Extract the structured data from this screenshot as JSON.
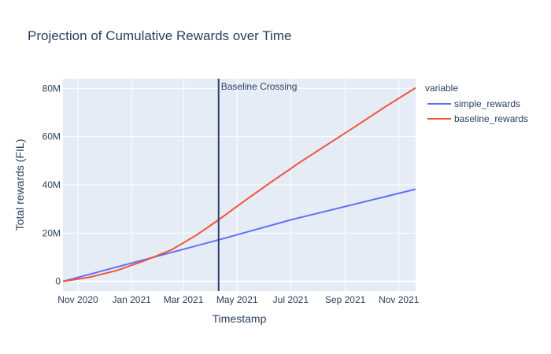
{
  "chart_data": {
    "type": "line",
    "title": "Projection of Cumulative Rewards over Time",
    "xlabel": "Timestamp",
    "ylabel": "Total rewards (FIL)",
    "x_start": "2020-10-15",
    "x_end": "2021-11-20",
    "xlim": [
      "2020-10-15",
      "2021-11-20"
    ],
    "ylim": [
      -4000000,
      84000000
    ],
    "x_ticks": [
      {
        "date": "2020-11-01",
        "label": "Nov 2020"
      },
      {
        "date": "2021-01-01",
        "label": "Jan 2021"
      },
      {
        "date": "2021-03-01",
        "label": "Mar 2021"
      },
      {
        "date": "2021-05-01",
        "label": "May 2021"
      },
      {
        "date": "2021-07-01",
        "label": "Jul 2021"
      },
      {
        "date": "2021-09-01",
        "label": "Sep 2021"
      },
      {
        "date": "2021-11-01",
        "label": "Nov 2021"
      }
    ],
    "y_ticks": [
      {
        "value": 0,
        "label": "0"
      },
      {
        "value": 20000000,
        "label": "20M"
      },
      {
        "value": 40000000,
        "label": "40M"
      },
      {
        "value": 60000000,
        "label": "60M"
      },
      {
        "value": 80000000,
        "label": "80M"
      }
    ],
    "legend_title": "variable",
    "legend_position": "right",
    "grid": true,
    "series": [
      {
        "name": "simple_rewards",
        "color": "#636efa",
        "points": [
          [
            "2020-10-15",
            0
          ],
          [
            "2021-01-01",
            7600000
          ],
          [
            "2021-04-10",
            17200000
          ],
          [
            "2021-07-01",
            25500000
          ],
          [
            "2021-11-20",
            38200000
          ]
        ]
      },
      {
        "name": "baseline_rewards",
        "color": "#ef553b",
        "points": [
          [
            "2020-10-15",
            0
          ],
          [
            "2020-11-15",
            1800000
          ],
          [
            "2020-12-15",
            4500000
          ],
          [
            "2021-01-15",
            8500000
          ],
          [
            "2021-02-15",
            13000000
          ],
          [
            "2021-03-15",
            19000000
          ],
          [
            "2021-04-10",
            25500000
          ],
          [
            "2021-05-10",
            33500000
          ],
          [
            "2021-06-10",
            41500000
          ],
          [
            "2021-07-10",
            49000000
          ],
          [
            "2021-08-15",
            57500000
          ],
          [
            "2021-09-15",
            64800000
          ],
          [
            "2021-10-15",
            72000000
          ],
          [
            "2021-11-20",
            80200000
          ]
        ]
      }
    ],
    "annotations": [
      {
        "type": "vline",
        "date": "2021-04-10",
        "label": "Baseline Crossing",
        "color": "#2a3f6f"
      }
    ]
  }
}
